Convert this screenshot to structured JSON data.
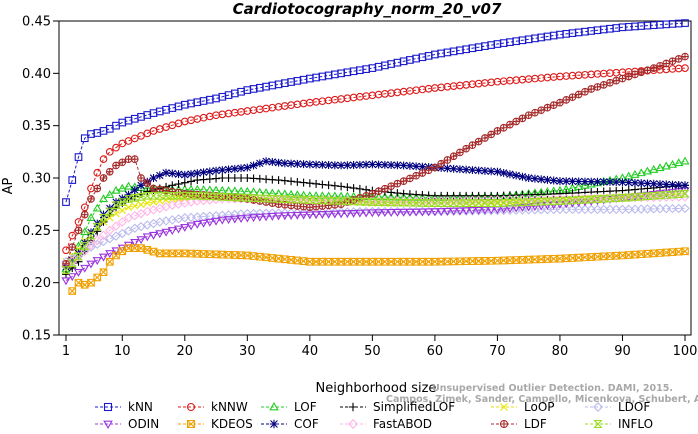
{
  "chart_data": {
    "type": "line",
    "title": "Cardiotocography_norm_20_v07",
    "xlabel": "Neighborhood size",
    "ylabel": "AP",
    "xlim": [
      1,
      100
    ],
    "ylim": [
      0.15,
      0.45
    ],
    "xticks": [
      "1",
      "10",
      "20",
      "30",
      "40",
      "50",
      "60",
      "70",
      "80",
      "90",
      "100"
    ],
    "yticks": [
      "0.15",
      "0.20",
      "0.25",
      "0.30",
      "0.35",
      "0.40",
      "0.45"
    ],
    "grid": false,
    "legend_position": "bottom",
    "series": [
      {
        "name": "kNN",
        "color": "#1a1acc",
        "marker": "square",
        "points": [
          [
            1,
            0.277
          ],
          [
            2,
            0.298
          ],
          [
            3,
            0.32
          ],
          [
            4,
            0.338
          ],
          [
            5,
            0.342
          ],
          [
            6,
            0.343
          ],
          [
            8,
            0.347
          ],
          [
            10,
            0.353
          ],
          [
            15,
            0.362
          ],
          [
            20,
            0.37
          ],
          [
            25,
            0.376
          ],
          [
            30,
            0.384
          ],
          [
            40,
            0.395
          ],
          [
            50,
            0.405
          ],
          [
            60,
            0.418
          ],
          [
            70,
            0.428
          ],
          [
            80,
            0.437
          ],
          [
            90,
            0.444
          ],
          [
            100,
            0.448
          ]
        ]
      },
      {
        "name": "kNNW",
        "color": "#dd1a1a",
        "marker": "circle",
        "points": [
          [
            1,
            0.231
          ],
          [
            2,
            0.245
          ],
          [
            3,
            0.258
          ],
          [
            4,
            0.272
          ],
          [
            5,
            0.29
          ],
          [
            6,
            0.305
          ],
          [
            7,
            0.318
          ],
          [
            8,
            0.325
          ],
          [
            10,
            0.333
          ],
          [
            15,
            0.345
          ],
          [
            20,
            0.354
          ],
          [
            25,
            0.36
          ],
          [
            30,
            0.364
          ],
          [
            40,
            0.372
          ],
          [
            50,
            0.379
          ],
          [
            60,
            0.386
          ],
          [
            70,
            0.392
          ],
          [
            80,
            0.397
          ],
          [
            90,
            0.401
          ],
          [
            100,
            0.405
          ]
        ]
      },
      {
        "name": "LOF",
        "color": "#22cc22",
        "marker": "triangle",
        "points": [
          [
            1,
            0.213
          ],
          [
            3,
            0.235
          ],
          [
            5,
            0.262
          ],
          [
            7,
            0.28
          ],
          [
            9,
            0.288
          ],
          [
            11,
            0.292
          ],
          [
            14,
            0.29
          ],
          [
            18,
            0.289
          ],
          [
            22,
            0.289
          ],
          [
            26,
            0.288
          ],
          [
            30,
            0.287
          ],
          [
            40,
            0.283
          ],
          [
            50,
            0.282
          ],
          [
            60,
            0.281
          ],
          [
            70,
            0.282
          ],
          [
            80,
            0.288
          ],
          [
            90,
            0.3
          ],
          [
            100,
            0.316
          ]
        ]
      },
      {
        "name": "SimplifiedLOF",
        "color": "#000000",
        "marker": "plus",
        "points": [
          [
            1,
            0.208
          ],
          [
            3,
            0.22
          ],
          [
            5,
            0.24
          ],
          [
            7,
            0.258
          ],
          [
            9,
            0.272
          ],
          [
            11,
            0.28
          ],
          [
            14,
            0.287
          ],
          [
            18,
            0.293
          ],
          [
            22,
            0.298
          ],
          [
            26,
            0.3
          ],
          [
            30,
            0.3
          ],
          [
            35,
            0.298
          ],
          [
            40,
            0.295
          ],
          [
            45,
            0.292
          ],
          [
            50,
            0.288
          ],
          [
            55,
            0.285
          ],
          [
            60,
            0.283
          ],
          [
            70,
            0.283
          ],
          [
            80,
            0.285
          ],
          [
            90,
            0.288
          ],
          [
            100,
            0.293
          ]
        ]
      },
      {
        "name": "LoOP",
        "color": "#e6e600",
        "marker": "x",
        "points": [
          [
            1,
            0.22
          ],
          [
            3,
            0.232
          ],
          [
            5,
            0.248
          ],
          [
            7,
            0.258
          ],
          [
            9,
            0.266
          ],
          [
            11,
            0.272
          ],
          [
            14,
            0.276
          ],
          [
            18,
            0.28
          ],
          [
            22,
            0.282
          ],
          [
            26,
            0.282
          ],
          [
            30,
            0.281
          ],
          [
            40,
            0.279
          ],
          [
            50,
            0.276
          ],
          [
            60,
            0.276
          ],
          [
            70,
            0.277
          ],
          [
            80,
            0.279
          ],
          [
            90,
            0.282
          ],
          [
            100,
            0.285
          ]
        ]
      },
      {
        "name": "LDOF",
        "color": "#bbbbee",
        "marker": "diamond",
        "points": [
          [
            1,
            0.22
          ],
          [
            3,
            0.226
          ],
          [
            5,
            0.234
          ],
          [
            8,
            0.242
          ],
          [
            12,
            0.252
          ],
          [
            16,
            0.258
          ],
          [
            20,
            0.262
          ],
          [
            30,
            0.266
          ],
          [
            40,
            0.267
          ],
          [
            50,
            0.268
          ],
          [
            60,
            0.268
          ],
          [
            70,
            0.269
          ],
          [
            80,
            0.27
          ],
          [
            90,
            0.27
          ],
          [
            100,
            0.271
          ]
        ]
      },
      {
        "name": "ODIN",
        "color": "#9933dd",
        "marker": "triangle-down",
        "points": [
          [
            1,
            0.202
          ],
          [
            3,
            0.21
          ],
          [
            5,
            0.218
          ],
          [
            8,
            0.228
          ],
          [
            11,
            0.236
          ],
          [
            14,
            0.244
          ],
          [
            18,
            0.25
          ],
          [
            22,
            0.256
          ],
          [
            26,
            0.26
          ],
          [
            30,
            0.262
          ],
          [
            35,
            0.264
          ],
          [
            40,
            0.265
          ],
          [
            50,
            0.267
          ],
          [
            60,
            0.268
          ],
          [
            70,
            0.27
          ],
          [
            80,
            0.275
          ],
          [
            90,
            0.281
          ],
          [
            100,
            0.288
          ]
        ]
      },
      {
        "name": "KDEOS",
        "color": "#f0a000",
        "marker": "square-x",
        "points": [
          [
            2,
            0.192
          ],
          [
            3,
            0.2
          ],
          [
            4,
            0.198
          ],
          [
            5,
            0.2
          ],
          [
            6,
            0.205
          ],
          [
            7,
            0.21
          ],
          [
            8,
            0.22
          ],
          [
            9,
            0.226
          ],
          [
            10,
            0.23
          ],
          [
            11,
            0.233
          ],
          [
            13,
            0.233
          ],
          [
            16,
            0.228
          ],
          [
            20,
            0.228
          ],
          [
            25,
            0.227
          ],
          [
            30,
            0.226
          ],
          [
            35,
            0.223
          ],
          [
            40,
            0.22
          ],
          [
            50,
            0.22
          ],
          [
            60,
            0.22
          ],
          [
            70,
            0.221
          ],
          [
            80,
            0.223
          ],
          [
            90,
            0.226
          ],
          [
            100,
            0.23
          ]
        ]
      },
      {
        "name": "COF",
        "color": "#000080",
        "marker": "star",
        "points": [
          [
            1,
            0.215
          ],
          [
            3,
            0.228
          ],
          [
            5,
            0.248
          ],
          [
            7,
            0.265
          ],
          [
            9,
            0.277
          ],
          [
            11,
            0.284
          ],
          [
            13,
            0.293
          ],
          [
            15,
            0.3
          ],
          [
            17,
            0.305
          ],
          [
            20,
            0.303
          ],
          [
            25,
            0.307
          ],
          [
            30,
            0.31
          ],
          [
            33,
            0.316
          ],
          [
            36,
            0.314
          ],
          [
            40,
            0.313
          ],
          [
            45,
            0.312
          ],
          [
            50,
            0.313
          ],
          [
            55,
            0.312
          ],
          [
            60,
            0.31
          ],
          [
            65,
            0.308
          ],
          [
            70,
            0.306
          ],
          [
            75,
            0.3
          ],
          [
            80,
            0.297
          ],
          [
            90,
            0.296
          ],
          [
            100,
            0.293
          ]
        ]
      },
      {
        "name": "FastABOD",
        "color": "#ffb6e6",
        "marker": "diamond",
        "points": [
          [
            1,
            0.216
          ],
          [
            3,
            0.225
          ],
          [
            5,
            0.236
          ],
          [
            8,
            0.25
          ],
          [
            11,
            0.262
          ],
          [
            14,
            0.268
          ],
          [
            18,
            0.274
          ],
          [
            22,
            0.278
          ],
          [
            26,
            0.28
          ],
          [
            30,
            0.28
          ],
          [
            40,
            0.279
          ],
          [
            50,
            0.278
          ],
          [
            60,
            0.278
          ],
          [
            70,
            0.279
          ],
          [
            80,
            0.28
          ],
          [
            90,
            0.281
          ],
          [
            100,
            0.282
          ]
        ]
      },
      {
        "name": "LDF",
        "color": "#a52a2a",
        "marker": "circle-plus",
        "points": [
          [
            1,
            0.218
          ],
          [
            3,
            0.25
          ],
          [
            5,
            0.28
          ],
          [
            7,
            0.3
          ],
          [
            9,
            0.312
          ],
          [
            11,
            0.318
          ],
          [
            12,
            0.318
          ],
          [
            13,
            0.3
          ],
          [
            15,
            0.29
          ],
          [
            20,
            0.285
          ],
          [
            25,
            0.283
          ],
          [
            30,
            0.28
          ],
          [
            35,
            0.275
          ],
          [
            40,
            0.272
          ],
          [
            45,
            0.275
          ],
          [
            50,
            0.285
          ],
          [
            55,
            0.297
          ],
          [
            60,
            0.31
          ],
          [
            65,
            0.328
          ],
          [
            70,
            0.345
          ],
          [
            75,
            0.36
          ],
          [
            80,
            0.372
          ],
          [
            85,
            0.385
          ],
          [
            90,
            0.395
          ],
          [
            95,
            0.405
          ],
          [
            100,
            0.416
          ]
        ]
      },
      {
        "name": "INFLO",
        "color": "#99dd22",
        "marker": "hourglass",
        "points": [
          [
            1,
            0.212
          ],
          [
            3,
            0.225
          ],
          [
            5,
            0.245
          ],
          [
            7,
            0.262
          ],
          [
            9,
            0.274
          ],
          [
            11,
            0.28
          ],
          [
            14,
            0.283
          ],
          [
            18,
            0.283
          ],
          [
            22,
            0.283
          ],
          [
            26,
            0.282
          ],
          [
            30,
            0.281
          ],
          [
            40,
            0.279
          ],
          [
            50,
            0.277
          ],
          [
            60,
            0.276
          ],
          [
            70,
            0.276
          ],
          [
            80,
            0.278
          ],
          [
            90,
            0.281
          ],
          [
            100,
            0.285
          ]
        ]
      }
    ]
  },
  "legend": {
    "rows": [
      [
        "kNN",
        "kNNW",
        "LOF",
        "SimplifiedLOF",
        "LoOP",
        "LDOF"
      ],
      [
        "ODIN",
        "KDEOS",
        "COF",
        "FastABOD",
        "LDF",
        "INFLO"
      ]
    ]
  },
  "watermark": {
    "line1": "Unsupervised Outlier Detection. DAMI, 2015.",
    "line2": "Campos, Zimek, Sander, Campello, Micenkova, Schubert, Assent, Houle"
  }
}
